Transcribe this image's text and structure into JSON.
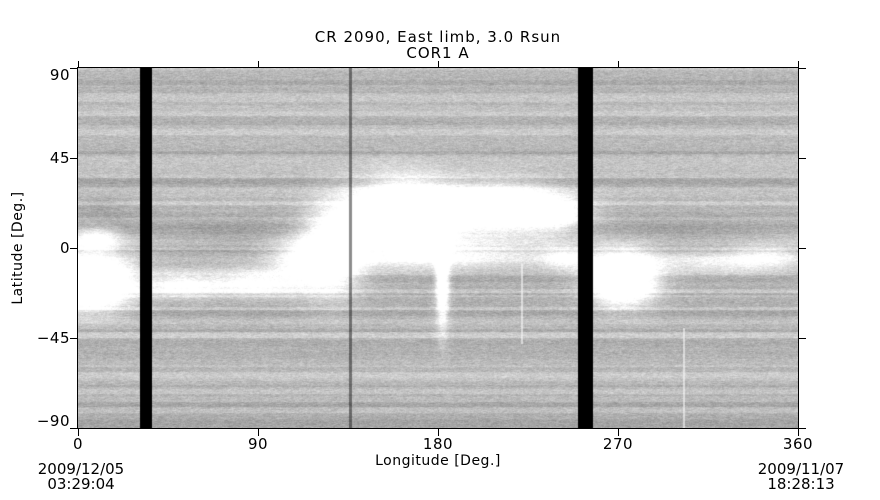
{
  "title": {
    "line1": "CR 2090, East limb, 3.0 Rsun",
    "line2": "COR1 A"
  },
  "axes": {
    "x": {
      "label": "Longitude [Deg.]",
      "range": [
        0,
        360
      ],
      "tick_values": [
        0,
        90,
        180,
        270,
        360
      ],
      "ticks": [
        "0",
        "90",
        "180",
        "270",
        "360"
      ]
    },
    "y": {
      "label": "Latitude [Deg.]",
      "range": [
        -90,
        90
      ],
      "tick_values": [
        90,
        45,
        0,
        -45,
        -90
      ],
      "ticks": [
        "90",
        "45",
        "0",
        "−45",
        "−90"
      ]
    }
  },
  "footer": {
    "start_date": "2009/12/05",
    "start_time": "03:29:04",
    "end_date": "2009/11/07",
    "end_time": "18:28:13"
  },
  "colors": {
    "axis": "#000000",
    "text": "#000000",
    "gap_fill": "#000000",
    "map_mean_gray": "#bfbfbf",
    "bright_feature": "#ffffff"
  },
  "chart_data": {
    "type": "heatmap",
    "title": "CR 2090, East limb, 3.0 Rsun — COR1 A",
    "xlabel": "Longitude [Deg.]",
    "ylabel": "Latitude [Deg.]",
    "xlim": [
      0,
      360
    ],
    "ylim": [
      -90,
      90
    ],
    "description": "Grayscale Carrington synoptic map of coronal brightness at 3.0 Rsun from the COR1-A coronagraph; speckled gray background with horizontal scan-line striping, a bright equatorial streamer belt, black vertical data-gap bars, and vertical seam lines.",
    "background": {
      "base_gray": 191,
      "stripe_min": -26,
      "stripe_max": 16,
      "speckle": 32
    },
    "gap_color": "#000000",
    "data_gaps": [
      {
        "lon_start": 31,
        "lon_end": 37
      },
      {
        "lon_start": 250,
        "lon_end": 257.5
      }
    ],
    "seams": [
      {
        "lon": 136,
        "shade": "dark",
        "lat_from": 90,
        "lat_to": -90
      },
      {
        "lon": 222,
        "shade": "light",
        "lat_from": -8,
        "lat_to": -48
      },
      {
        "lon": 303,
        "shade": "light",
        "lat_from": -40,
        "lat_to": -90
      }
    ],
    "features": [
      {
        "name": "east-limb-streamer",
        "lon": 6,
        "lat": -17,
        "sig_lon": 14,
        "sig_lat": 9,
        "amp": 220
      },
      {
        "name": "east-limb-upper-patch",
        "lon": 9,
        "lat": 5,
        "sig_lon": 8,
        "sig_lat": 4,
        "amp": 90
      },
      {
        "name": "mid-band-a",
        "lon": 52,
        "lat": -18,
        "sig_lon": 14,
        "sig_lat": 4.5,
        "amp": 95
      },
      {
        "name": "mid-band-b",
        "lon": 88,
        "lat": -17,
        "sig_lon": 14,
        "sig_lat": 4.5,
        "amp": 95
      },
      {
        "name": "mid-bright-patch",
        "lon": 114,
        "lat": -8,
        "sig_lon": 12,
        "sig_lat": 9,
        "amp": 90
      },
      {
        "name": "pre-seam-wedge",
        "lon": 128,
        "lat": 0,
        "sig_lon": 10,
        "sig_lat": 14,
        "amp": 140
      },
      {
        "name": "big-blob-west",
        "lon": 163,
        "lat": 17,
        "sig_lon": 17,
        "sig_lat": 11,
        "amp": 235
      },
      {
        "name": "big-blob-east",
        "lon": 210,
        "lat": 20,
        "sig_lon": 20,
        "sig_lat": 8,
        "amp": 170
      },
      {
        "name": "blob-east-extension",
        "lon": 238,
        "lat": 17,
        "sig_lon": 12,
        "sig_lat": 6,
        "amp": 80
      },
      {
        "name": "equatorial-band",
        "lon": 185,
        "lat": -4,
        "sig_lon": 38,
        "sig_lat": 4.5,
        "amp": 70
      },
      {
        "name": "polar-plume",
        "lon": 182,
        "lat": -16,
        "sig_lon": 2.2,
        "sig_lat": 16,
        "amp": 150
      },
      {
        "name": "pre-gap-equator-band",
        "lon": 243,
        "lat": -5,
        "sig_lon": 8,
        "sig_lat": 4,
        "amp": 65
      },
      {
        "name": "west-limb-streamer",
        "lon": 272,
        "lat": -15,
        "sig_lon": 11,
        "sig_lat": 8.5,
        "amp": 215
      },
      {
        "name": "west-band",
        "lon": 318,
        "lat": -7,
        "sig_lon": 28,
        "sig_lat": 4,
        "amp": 60
      },
      {
        "name": "far-west-patch",
        "lon": 344,
        "lat": -4,
        "sig_lon": 12,
        "sig_lat": 4,
        "amp": 50
      },
      {
        "name": "dark-lane-mid",
        "lon": 75,
        "lat": 6,
        "sig_lon": 28,
        "sig_lat": 6,
        "amp": -20
      },
      {
        "name": "dark-lane-left",
        "lon": 12,
        "lat": 18,
        "sig_lon": 12,
        "sig_lat": 7,
        "amp": -16
      },
      {
        "name": "dark-lane-west",
        "lon": 300,
        "lat": 6,
        "sig_lon": 30,
        "sig_lat": 6,
        "amp": -16
      }
    ]
  }
}
